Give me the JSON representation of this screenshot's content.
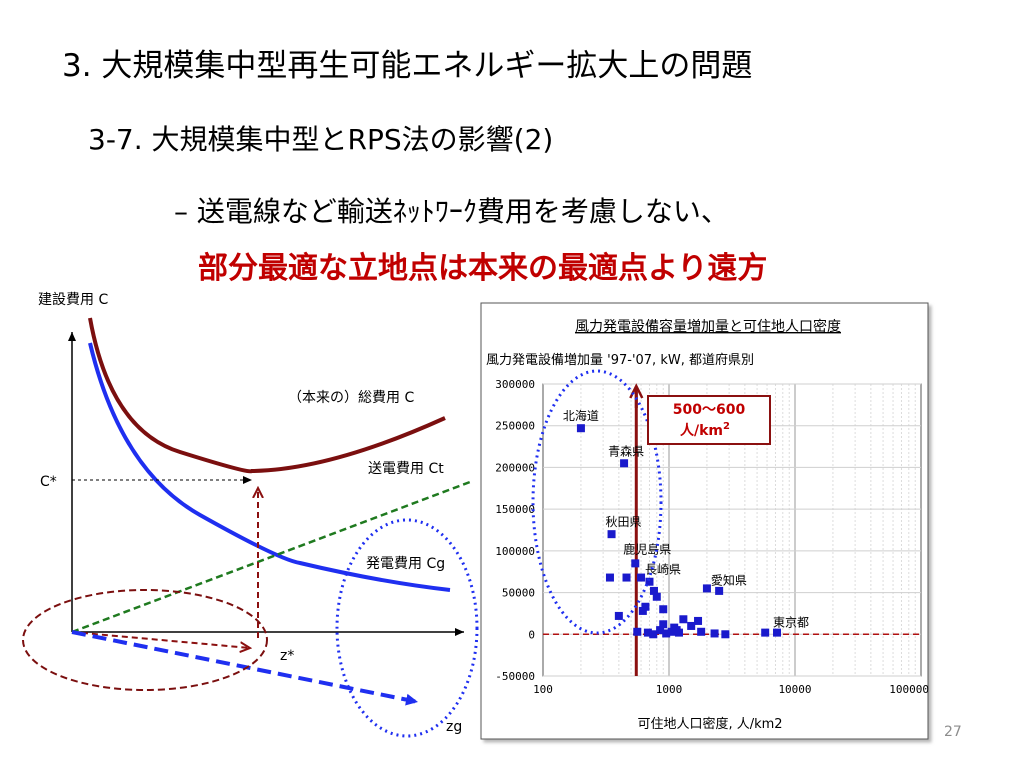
{
  "slide": {
    "title": "3. 大規模集中型再生可能エネルギー拡大上の問題",
    "subtitle": "3-7. 大規模集中型とRPS法の影響(2)",
    "bullet": "– 送電線など輸送ﾈｯﾄﾜｰｸ費用を考慮しない、",
    "highlight": "部分最適な立地点は本来の最適点より遠方",
    "page_number": "27"
  },
  "diagram": {
    "y_axis_label": "建設費用 C",
    "cstar_label": "C*",
    "total_cost_label": "（本来の）総費用 C",
    "transmission_cost_label": "送電費用 Ct",
    "generation_cost_label": "発電費用 Cg",
    "zstar_label": "z*",
    "zg_label": "zg",
    "colors": {
      "total": "#7b0f0f",
      "generation": "#1f2ff0",
      "transmission": "#1f7a1f",
      "markers": "#8b1010",
      "ellipse": "#1f2ff0"
    }
  },
  "chart_data": {
    "type": "scatter",
    "title": "風力発電設備容量増加量と可住地人口密度",
    "ylabel": "風力発電設備増加量 '97-'07, kW, 都道府県別",
    "xlabel": "可住地人口密度,  人/km2",
    "x_scale": "log",
    "xlim": [
      100,
      100000
    ],
    "ylim": [
      -50000,
      300000
    ],
    "x_ticks": [
      "100",
      "1000",
      "10000",
      "100000"
    ],
    "y_ticks": [
      "300000",
      "250000",
      "200000",
      "150000",
      "100000",
      "50000",
      "0",
      "-50000"
    ],
    "annotation": {
      "line1": "500～600",
      "line2": "人/km",
      "sup": "2"
    },
    "vline_x": 550,
    "point_color": "#1a1acc",
    "points": [
      {
        "x": 200,
        "y": 247000,
        "label": "北海道"
      },
      {
        "x": 440,
        "y": 205000,
        "label": "青森県"
      },
      {
        "x": 350,
        "y": 120000,
        "label": "秋田県"
      },
      {
        "x": 540,
        "y": 85000,
        "label": "鹿児島県"
      },
      {
        "x": 600,
        "y": 68000,
        "label": "長崎県"
      },
      {
        "x": 2000,
        "y": 55000,
        "label": "愛知県"
      },
      {
        "x": 7200,
        "y": 2000,
        "label": "東京都"
      },
      {
        "x": 340,
        "y": 68000,
        "label": ""
      },
      {
        "x": 460,
        "y": 68000,
        "label": ""
      },
      {
        "x": 700,
        "y": 63000,
        "label": ""
      },
      {
        "x": 760,
        "y": 52000,
        "label": ""
      },
      {
        "x": 800,
        "y": 45000,
        "label": ""
      },
      {
        "x": 2500,
        "y": 52000,
        "label": ""
      },
      {
        "x": 650,
        "y": 33000,
        "label": ""
      },
      {
        "x": 900,
        "y": 30000,
        "label": ""
      },
      {
        "x": 400,
        "y": 22000,
        "label": ""
      },
      {
        "x": 620,
        "y": 28000,
        "label": ""
      },
      {
        "x": 1300,
        "y": 18000,
        "label": ""
      },
      {
        "x": 1700,
        "y": 16000,
        "label": ""
      },
      {
        "x": 1500,
        "y": 10000,
        "label": ""
      },
      {
        "x": 1100,
        "y": 8000,
        "label": ""
      },
      {
        "x": 850,
        "y": 5000,
        "label": ""
      },
      {
        "x": 560,
        "y": 3000,
        "label": ""
      },
      {
        "x": 680,
        "y": 2000,
        "label": ""
      },
      {
        "x": 750,
        "y": 0,
        "label": ""
      },
      {
        "x": 950,
        "y": 1000,
        "label": ""
      },
      {
        "x": 1050,
        "y": 3000,
        "label": ""
      },
      {
        "x": 1200,
        "y": 2000,
        "label": ""
      },
      {
        "x": 1800,
        "y": 3000,
        "label": ""
      },
      {
        "x": 2300,
        "y": 1000,
        "label": ""
      },
      {
        "x": 2800,
        "y": 0,
        "label": ""
      },
      {
        "x": 900,
        "y": 12000,
        "label": ""
      },
      {
        "x": 1150,
        "y": 5000,
        "label": ""
      },
      {
        "x": 5800,
        "y": 2000,
        "label": ""
      }
    ]
  }
}
